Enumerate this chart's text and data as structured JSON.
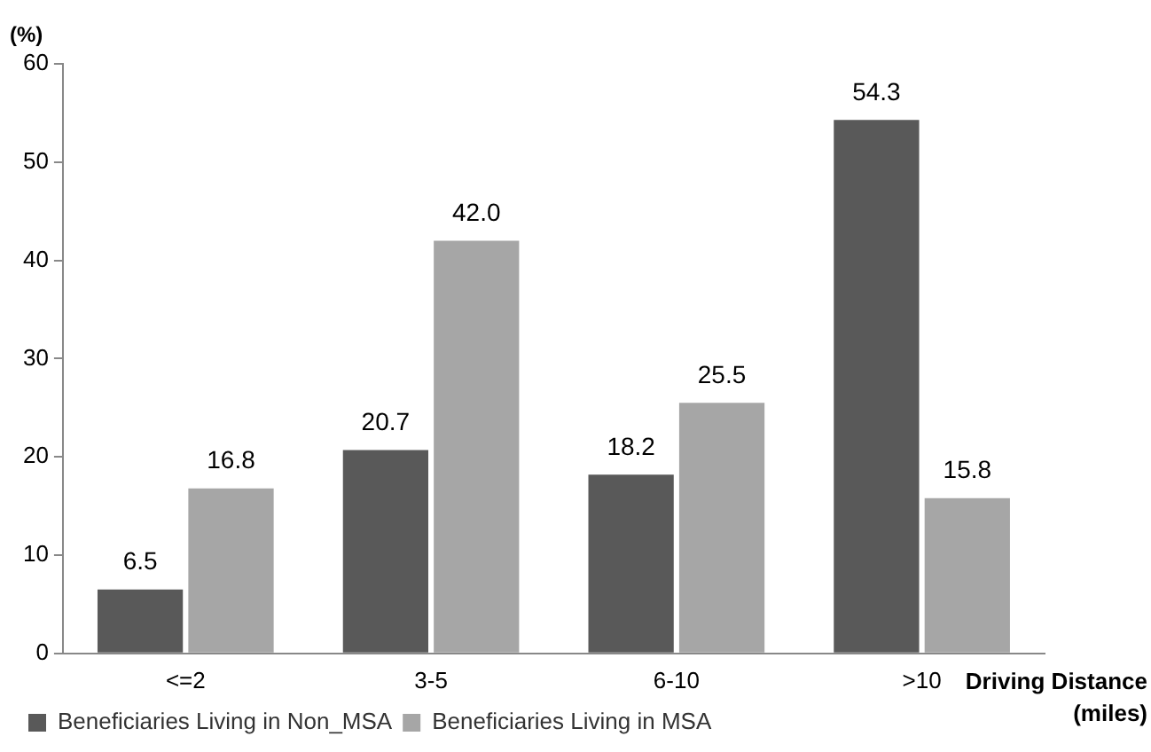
{
  "chart_data": {
    "type": "bar",
    "ylabel": "(%)",
    "xlabel": "Driving Distance (miles)",
    "categories": [
      "<=2",
      "3-5",
      "6-10",
      ">10"
    ],
    "series": [
      {
        "name": "Beneficiaries Living in Non_MSA",
        "color": "#595959",
        "values": [
          6.5,
          20.7,
          18.2,
          54.3
        ],
        "value_labels": [
          "6.5",
          "20.7",
          "18.2",
          "54.3"
        ]
      },
      {
        "name": "Beneficiaries Living in MSA",
        "color": "#a6a6a6",
        "values": [
          16.8,
          42.0,
          25.5,
          15.8
        ],
        "value_labels": [
          "16.8",
          "42.0",
          "25.5",
          "15.8"
        ]
      }
    ],
    "ylim": [
      0,
      60
    ],
    "yticks": [
      0,
      10,
      20,
      30,
      40,
      50,
      60
    ],
    "grid": false,
    "legend": "bottom left"
  }
}
